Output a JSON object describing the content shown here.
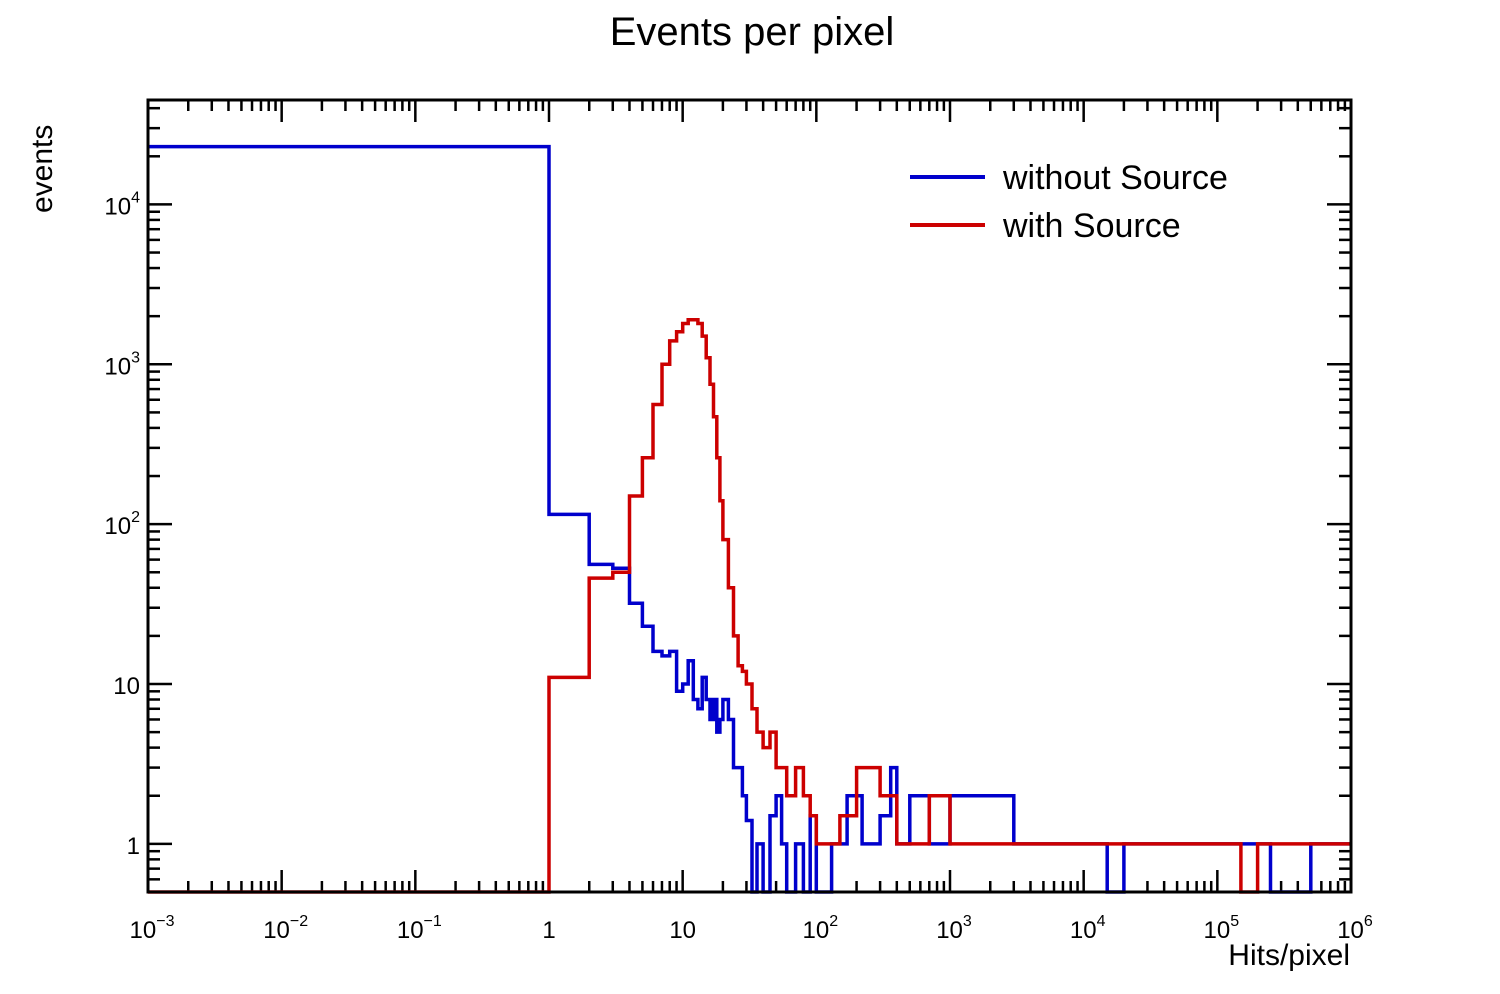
{
  "chart_data": {
    "type": "line",
    "title": "Events per pixel",
    "xlabel": "Hits/pixel",
    "ylabel": "events",
    "x_scale": "log",
    "y_scale": "log",
    "xlim": [
      0.001,
      1000000
    ],
    "ylim": [
      0.5,
      45000
    ],
    "x_ticks": [
      {
        "base": "10",
        "exp": "−3",
        "value": 0.001
      },
      {
        "base": "10",
        "exp": "−2",
        "value": 0.01
      },
      {
        "base": "10",
        "exp": "−1",
        "value": 0.1
      },
      {
        "base": "1",
        "exp": "",
        "value": 1
      },
      {
        "base": "10",
        "exp": "",
        "value": 10
      },
      {
        "base": "10",
        "exp": "2",
        "value": 100
      },
      {
        "base": "10",
        "exp": "3",
        "value": 1000
      },
      {
        "base": "10",
        "exp": "4",
        "value": 10000
      },
      {
        "base": "10",
        "exp": "5",
        "value": 100000
      },
      {
        "base": "10",
        "exp": "6",
        "value": 1000000
      }
    ],
    "y_ticks": [
      {
        "base": "1",
        "exp": "",
        "value": 1
      },
      {
        "base": "10",
        "exp": "",
        "value": 10
      },
      {
        "base": "10",
        "exp": "2",
        "value": 100
      },
      {
        "base": "10",
        "exp": "3",
        "value": 1000
      },
      {
        "base": "10",
        "exp": "4",
        "value": 10000
      }
    ],
    "legend_position": "top-right",
    "grid": false,
    "series": [
      {
        "name": "without Source",
        "color": "#0000cc",
        "x": [
          0.001,
          1,
          2,
          3,
          4,
          5,
          6,
          7,
          8,
          9,
          10,
          11,
          12,
          13,
          14,
          15,
          16,
          17,
          18,
          19,
          20,
          22,
          24,
          26,
          28,
          30,
          33,
          36,
          40,
          45,
          50,
          55,
          60,
          70,
          80,
          90,
          100,
          130,
          170,
          220,
          300,
          360,
          400,
          500,
          700,
          1000,
          3000,
          10000,
          15000,
          20000,
          100000,
          250000,
          500000,
          1000000
        ],
        "y": [
          23000,
          115,
          56,
          53,
          32,
          23,
          16,
          15,
          16,
          9,
          10,
          14,
          8,
          7,
          11,
          8,
          6,
          8,
          5,
          6,
          8,
          6,
          3,
          3,
          2,
          1.4,
          0.5,
          1,
          0.5,
          1.5,
          2,
          1,
          0.5,
          1,
          0.5,
          1.5,
          0.5,
          1,
          2,
          1,
          1.5,
          3,
          1,
          2,
          1,
          2,
          1,
          1,
          0.5,
          1,
          1,
          0.5,
          1,
          0.5
        ]
      },
      {
        "name": "with Source",
        "color": "#cc0000",
        "x": [
          0.001,
          1,
          2,
          3,
          4,
          5,
          6,
          7,
          8,
          9,
          10,
          11,
          12,
          13,
          14,
          15,
          16,
          17,
          18,
          19,
          20,
          22,
          24,
          26,
          28,
          30,
          33,
          36,
          40,
          45,
          50,
          55,
          60,
          70,
          80,
          90,
          100,
          150,
          200,
          300,
          400,
          700,
          1000,
          2000,
          5000,
          10000,
          50000,
          100000,
          150000,
          200000,
          1000000
        ],
        "y": [
          0.5,
          11,
          46,
          50,
          150,
          260,
          560,
          1000,
          1400,
          1600,
          1800,
          1900,
          1900,
          1800,
          1500,
          1100,
          750,
          470,
          260,
          140,
          80,
          40,
          20,
          13,
          12,
          10,
          7,
          5,
          4,
          5,
          3,
          3,
          2,
          3,
          2,
          1.5,
          1,
          1.5,
          3,
          2,
          1,
          2,
          1,
          1,
          1,
          1,
          1,
          1,
          0.5,
          1,
          0.5
        ]
      }
    ]
  }
}
